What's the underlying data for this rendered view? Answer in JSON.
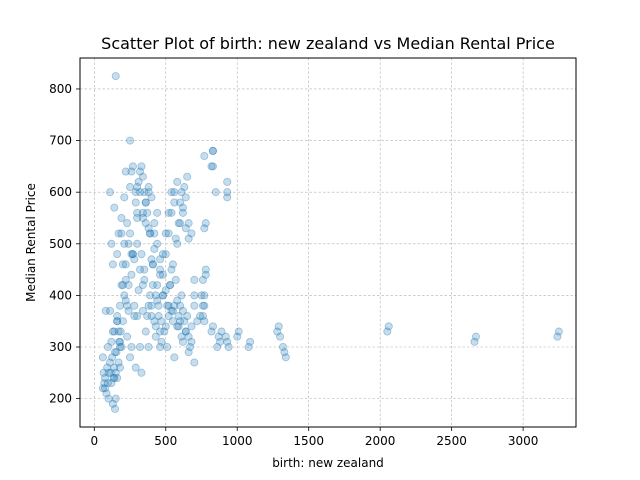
{
  "chart_data": {
    "type": "scatter",
    "title": "Scatter Plot of birth: new zealand vs Median Rental Price",
    "xlabel": "birth: new zealand",
    "ylabel": "Median Rental Price",
    "xlim": [
      -100,
      3370
    ],
    "ylim": [
      145,
      860
    ],
    "xticks": [
      0,
      500,
      1000,
      1500,
      2000,
      2500,
      3000
    ],
    "yticks": [
      200,
      300,
      400,
      500,
      600,
      700,
      800
    ],
    "grid": true,
    "grid_style": "dashed",
    "point_color": "#1f77b4",
    "point_alpha": 0.25,
    "x": [
      60,
      65,
      70,
      75,
      80,
      85,
      90,
      95,
      100,
      110,
      115,
      120,
      125,
      130,
      135,
      140,
      145,
      150,
      155,
      160,
      170,
      175,
      180,
      185,
      190,
      200,
      210,
      220,
      230,
      240,
      250,
      260,
      270,
      280,
      290,
      300,
      310,
      320,
      330,
      340,
      350,
      360,
      370,
      380,
      390,
      400,
      410,
      420,
      430,
      440,
      450,
      460,
      470,
      480,
      500,
      510,
      520,
      530,
      540,
      550,
      560,
      570,
      580,
      590,
      600,
      610,
      620,
      630,
      640,
      650,
      660,
      670,
      680,
      700,
      720,
      740,
      750,
      760,
      770,
      780,
      820,
      830,
      860,
      870,
      880,
      890,
      920,
      930,
      940,
      1000,
      1010,
      1080,
      1090,
      1280,
      1290,
      1300,
      1320,
      1330,
      1340,
      2050,
      2060,
      2660,
      2670,
      3240,
      3250,
      60,
      75,
      95,
      110,
      130,
      145,
      160,
      180,
      200,
      220,
      240,
      260,
      280,
      300,
      320,
      340,
      360,
      380,
      400,
      420,
      440,
      460,
      480,
      500,
      520,
      540,
      560,
      580,
      600,
      620,
      640,
      660,
      680,
      700,
      760,
      770,
      780,
      830,
      850,
      930,
      100,
      120,
      140,
      160,
      180,
      200,
      220,
      240,
      260,
      280,
      300,
      320,
      340,
      360,
      380,
      400,
      420,
      440,
      460,
      480,
      500,
      520,
      540,
      560,
      580,
      600,
      620,
      640,
      660,
      700,
      760,
      770,
      820,
      140,
      150,
      160,
      170,
      180,
      190,
      210,
      230,
      250,
      270,
      290,
      310,
      330,
      350,
      370,
      390,
      410,
      430,
      450,
      470,
      490,
      510,
      530,
      550,
      570,
      590,
      610,
      630,
      650,
      770,
      830,
      930,
      150,
      230,
      250,
      270,
      300,
      330,
      350,
      380,
      400,
      430,
      460,
      560,
      590,
      610,
      770,
      780,
      830,
      930,
      120,
      130,
      170,
      190,
      210,
      250,
      290,
      320,
      340,
      360,
      390,
      410,
      440,
      480,
      520,
      550,
      600,
      640,
      680,
      110,
      140,
      160,
      190,
      220,
      260,
      300,
      340,
      380,
      420,
      460,
      500,
      540,
      580,
      620,
      660,
      700
    ],
    "y": [
      220,
      250,
      230,
      240,
      370,
      210,
      260,
      230,
      200,
      270,
      250,
      230,
      280,
      190,
      240,
      260,
      180,
      250,
      290,
      240,
      270,
      310,
      260,
      330,
      300,
      350,
      400,
      430,
      320,
      370,
      280,
      300,
      480,
      380,
      260,
      360,
      410,
      300,
      250,
      370,
      450,
      330,
      360,
      300,
      400,
      380,
      420,
      350,
      340,
      390,
      360,
      330,
      310,
      400,
      340,
      380,
      360,
      420,
      450,
      350,
      380,
      430,
      390,
      360,
      380,
      400,
      370,
      350,
      330,
      360,
      320,
      300,
      340,
      380,
      350,
      360,
      400,
      430,
      380,
      450,
      330,
      340,
      300,
      320,
      310,
      330,
      320,
      310,
      300,
      320,
      330,
      300,
      310,
      330,
      340,
      320,
      300,
      290,
      280,
      330,
      340,
      310,
      320,
      320,
      330,
      280,
      220,
      300,
      370,
      330,
      290,
      350,
      310,
      460,
      390,
      420,
      480,
      360,
      500,
      450,
      420,
      540,
      600,
      470,
      520,
      560,
      440,
      480,
      520,
      560,
      600,
      580,
      500,
      540,
      570,
      590,
      540,
      520,
      430,
      380,
      400,
      540,
      650,
      600,
      620,
      250,
      310,
      330,
      350,
      380,
      420,
      460,
      500,
      440,
      470,
      560,
      600,
      550,
      580,
      610,
      590,
      540,
      500,
      470,
      440,
      480,
      520,
      560,
      600,
      620,
      580,
      560,
      530,
      510,
      400,
      360,
      530,
      650,
      240,
      200,
      360,
      330,
      300,
      420,
      500,
      540,
      520,
      480,
      580,
      620,
      650,
      600,
      560,
      520,
      460,
      400,
      380,
      350,
      330,
      300,
      420,
      460,
      510,
      540,
      600,
      610,
      630,
      670,
      680,
      600,
      825,
      380,
      700,
      650,
      550,
      480,
      430,
      380,
      360,
      320,
      300,
      280,
      340,
      320,
      350,
      440,
      680,
      590,
      500,
      460,
      520,
      550,
      590,
      610,
      600,
      640,
      630,
      580,
      520,
      460,
      420,
      400,
      380,
      370,
      350,
      330,
      310,
      600,
      570,
      480,
      520,
      640,
      640,
      610,
      560,
      530,
      490,
      450,
      410,
      370,
      340,
      310,
      290,
      270
    ]
  }
}
